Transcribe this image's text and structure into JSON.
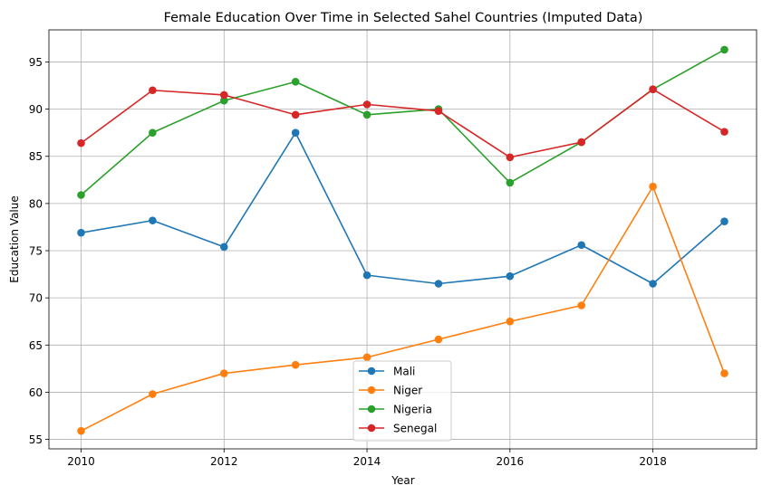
{
  "chart_data": {
    "type": "line",
    "title": "Female Education Over Time in Selected Sahel Countries (Imputed Data)",
    "xlabel": "Year",
    "ylabel": "Education Value",
    "x": [
      2010,
      2011,
      2012,
      2013,
      2014,
      2015,
      2016,
      2017,
      2018,
      2019
    ],
    "xlim": [
      2009.55,
      2019.45
    ],
    "ylim": [
      54.0,
      98.4
    ],
    "xticks": [
      2010,
      2012,
      2014,
      2016,
      2018
    ],
    "yticks": [
      55,
      60,
      65,
      70,
      75,
      80,
      85,
      90,
      95
    ],
    "grid": true,
    "legend_position": "lower-center",
    "series": [
      {
        "name": "Mali",
        "color": "#1f77b4",
        "values": [
          76.9,
          78.2,
          75.4,
          87.5,
          72.4,
          71.5,
          72.3,
          75.6,
          71.5,
          78.1
        ]
      },
      {
        "name": "Niger",
        "color": "#ff7f0e",
        "values": [
          55.9,
          59.8,
          62.0,
          62.9,
          63.7,
          65.6,
          67.5,
          69.2,
          81.8,
          62.0
        ]
      },
      {
        "name": "Nigeria",
        "color": "#2ca02c",
        "values": [
          80.9,
          87.5,
          90.9,
          92.9,
          89.4,
          90.0,
          82.2,
          86.5,
          92.1,
          96.3
        ]
      },
      {
        "name": "Senegal",
        "color": "#d62728",
        "values": [
          86.4,
          92.0,
          91.5,
          89.4,
          90.5,
          89.8,
          84.9,
          86.5,
          92.1,
          87.6
        ]
      }
    ]
  }
}
